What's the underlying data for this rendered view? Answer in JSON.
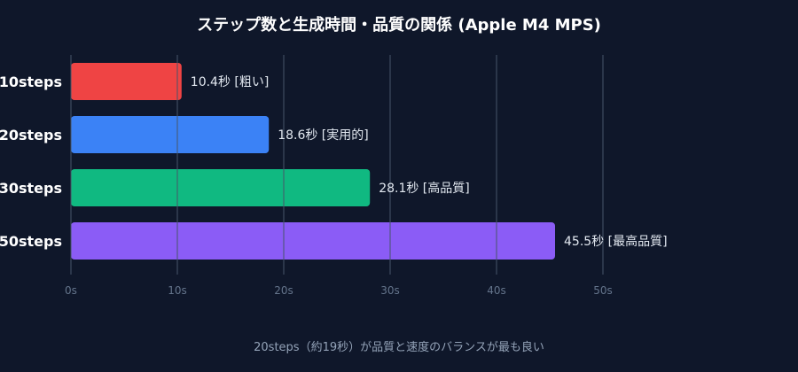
{
  "chart_data": {
    "type": "bar",
    "orientation": "horizontal",
    "title": "ステップ数と生成時間・品質の関係 (Apple M4 MPS)",
    "categories": [
      "10steps",
      "20steps",
      "30steps",
      "50steps"
    ],
    "values": [
      10.4,
      18.6,
      28.1,
      45.5
    ],
    "value_labels": [
      "10.4秒 [粗い]",
      "18.6秒 [実用的]",
      "28.1秒 [高品質]",
      "45.5秒 [最高品質]"
    ],
    "colors": [
      "#ef4444",
      "#3b82f6",
      "#10b981",
      "#8b5cf6"
    ],
    "xlim": [
      0,
      50
    ],
    "xticks": [
      0,
      10,
      20,
      30,
      40,
      50
    ],
    "xtick_labels": [
      "0s",
      "10s",
      "20s",
      "30s",
      "40s",
      "50s"
    ],
    "grid": true,
    "xlabel": "",
    "ylabel": ""
  },
  "footer_note": "20steps（約19秒）が品質と速度のバランスが最も良い"
}
